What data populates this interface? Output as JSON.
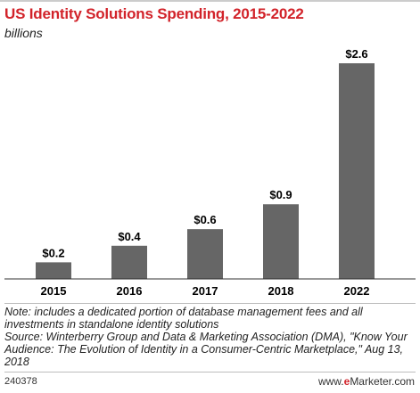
{
  "header": {
    "title": "US Identity Solutions Spending, 2015-2022",
    "subtitle": "billions"
  },
  "chart_data": {
    "type": "bar",
    "categories": [
      "2015",
      "2016",
      "2017",
      "2018",
      "2022"
    ],
    "values": [
      0.2,
      0.4,
      0.6,
      0.9,
      2.6
    ],
    "value_labels": [
      "$0.2",
      "$0.4",
      "$0.6",
      "$0.9",
      "$2.6"
    ],
    "title": "US Identity Solutions Spending, 2015-2022",
    "subtitle": "billions",
    "xlabel": "",
    "ylabel": "",
    "ylim": [
      0,
      2.6
    ],
    "grid": false,
    "bar_color": "#666666"
  },
  "footnotes": {
    "note": "Note: includes a dedicated portion of database management fees and all investments in standalone identity solutions",
    "source": "Source: Winterberry Group and Data & Marketing Association (DMA), \"Know Your Audience: The Evolution of Identity in a Consumer-Centric Marketplace,\" Aug 13, 2018"
  },
  "footer": {
    "chart_id": "240378",
    "brand_prefix": "www.",
    "brand_e": "e",
    "brand_rest": "Marketer.com"
  },
  "colors": {
    "title": "#d2232a",
    "bar": "#666666"
  }
}
